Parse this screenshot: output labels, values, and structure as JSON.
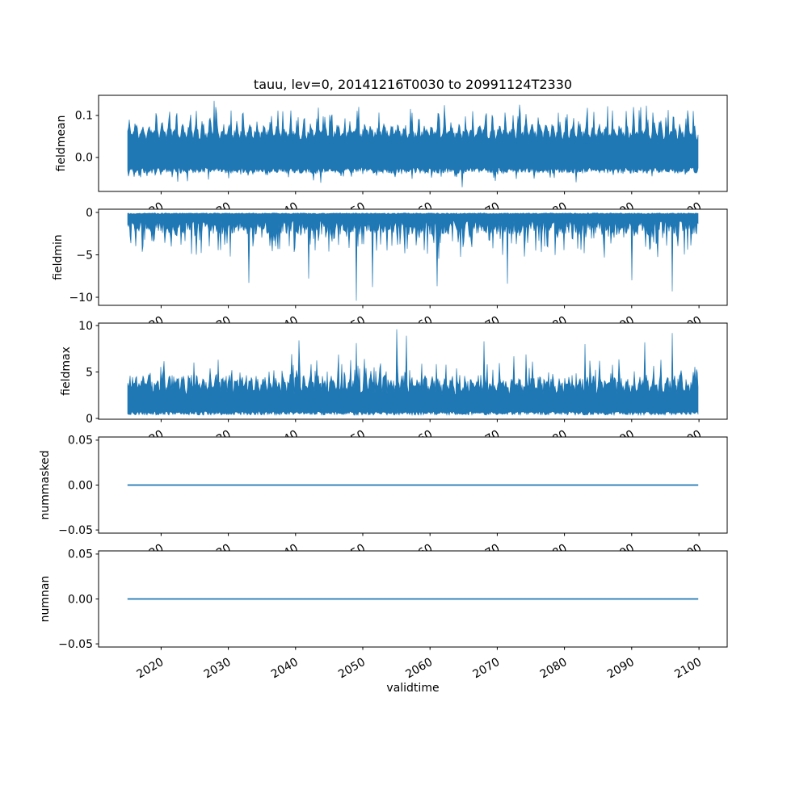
{
  "figure": {
    "background": "#ffffff",
    "line_color": "#1f77b4",
    "frame_color": "#000000"
  },
  "chart_data": {
    "type": "line",
    "title": "tauu, lev=0, 20141216T0030 to 20991124T2330",
    "xlabel": "validtime",
    "legend": "none",
    "grid": false,
    "x_axis": {
      "xlim": [
        2010.7,
        2104.2
      ],
      "ticks": [
        2020,
        2030,
        2040,
        2050,
        2060,
        2070,
        2080,
        2090,
        2100
      ],
      "tick_labels": [
        "2020",
        "2030",
        "2040",
        "2050",
        "2060",
        "2070",
        "2080",
        "2090",
        "2100"
      ],
      "data_start": 2015.0,
      "data_end": 2099.9,
      "tick_label_rotation_deg": 30
    },
    "panels": [
      {
        "name": "fieldmean",
        "ylabel": "fieldmean",
        "ylim": [
          -0.081,
          0.148
        ],
        "yticks": [
          0.0,
          0.1
        ],
        "ytick_labels": [
          "0.0",
          "0.1"
        ],
        "summary": {
          "mean_level": 0.015,
          "typical_range": [
            -0.035,
            0.08
          ],
          "observed_min": -0.071,
          "observed_max": 0.135
        },
        "series": {
          "kind": "noisy-band",
          "gen": {
            "seed": 11,
            "base_top": 0.04,
            "top_jitter": 0.022,
            "season_amp": 0.02,
            "season_gate": true,
            "spike_p": 0.55,
            "spike_amp": 0.05,
            "spike_pow": 1.5,
            "base_bottom": -0.024,
            "bottom_jitter": 0.014,
            "bspike_p": 0.1,
            "bspike_amp": 0.025,
            "bspike_pow": 1
          },
          "extremes_top": [
            {
              "year": 2027.9,
              "value": 0.135
            }
          ],
          "extremes_bottom": [
            {
              "year": 2064.8,
              "value": -0.071
            }
          ]
        }
      },
      {
        "name": "fieldmin",
        "ylabel": "fieldmin",
        "ylim": [
          -10.95,
          0.38
        ],
        "yticks": [
          0,
          -5,
          -10
        ],
        "ytick_labels": [
          "0",
          "−5",
          "−10"
        ],
        "summary": {
          "mean_level": -1.8,
          "typical_range": [
            -4.0,
            -0.1
          ],
          "observed_min": -10.4,
          "observed_max": -0.05
        },
        "series": {
          "kind": "noisy-band",
          "gen": {
            "seed": 22,
            "base_top": -0.18,
            "top_jitter": 0.12,
            "season_amp": 0,
            "base_bottom": -0.9,
            "bottom_jitter": 1.7,
            "bspike_p": 0.42,
            "bspike_amp": 3.2,
            "bspike_pow": 2,
            "bdeep_p": 0.015,
            "bdeep_amp": 3.4
          },
          "extremes_top": [],
          "extremes_bottom": [
            {
              "year": 2033.0,
              "value": -8.3
            },
            {
              "year": 2042.0,
              "value": -7.8
            },
            {
              "year": 2049.0,
              "value": -10.4
            },
            {
              "year": 2051.5,
              "value": -8.8
            },
            {
              "year": 2061.0,
              "value": -8.7
            },
            {
              "year": 2071.5,
              "value": -8.4
            },
            {
              "year": 2090.0,
              "value": -8.0
            },
            {
              "year": 2096.0,
              "value": -9.3
            }
          ]
        }
      },
      {
        "name": "fieldmax",
        "ylabel": "fieldmax",
        "ylim": [
          -0.09,
          10.26
        ],
        "yticks": [
          0,
          5,
          10
        ],
        "ytick_labels": [
          "0",
          "5",
          "10"
        ],
        "summary": {
          "mean_level": 2.5,
          "typical_range": [
            0.4,
            5.0
          ],
          "observed_min": 0.3,
          "observed_max": 9.6
        },
        "series": {
          "kind": "noisy-band",
          "gen": {
            "seed": 33,
            "base_top": 2.5,
            "top_jitter": 1.4,
            "season_amp": 0.9,
            "spike_p": 0.28,
            "spike_amp": 2.6,
            "spike_pow": 2,
            "base_bottom": 0.75,
            "bottom_jitter": 0.4
          },
          "extremes_top": [
            {
              "year": 2040.5,
              "value": 8.4
            },
            {
              "year": 2049.0,
              "value": 8.1
            },
            {
              "year": 2055.0,
              "value": 9.6
            },
            {
              "year": 2056.5,
              "value": 8.9
            },
            {
              "year": 2068.0,
              "value": 8.3
            },
            {
              "year": 2083.0,
              "value": 8.0
            },
            {
              "year": 2092.0,
              "value": 8.2
            },
            {
              "year": 2096.0,
              "value": 9.2
            }
          ],
          "extremes_bottom": []
        }
      },
      {
        "name": "nummasked",
        "ylabel": "nummasked",
        "ylim": [
          -0.0535,
          0.0535
        ],
        "yticks": [
          0.05,
          0.0,
          -0.05
        ],
        "ytick_labels": [
          "0.05",
          "0.00",
          "−0.05"
        ],
        "summary": {
          "constant_value": 0.0
        },
        "series": {
          "kind": "flat",
          "value": 0.0
        }
      },
      {
        "name": "numnan",
        "ylabel": "numnan",
        "ylim": [
          -0.0535,
          0.0535
        ],
        "yticks": [
          0.05,
          0.0,
          -0.05
        ],
        "ytick_labels": [
          "0.05",
          "0.00",
          "−0.05"
        ],
        "summary": {
          "constant_value": 0.0
        },
        "series": {
          "kind": "flat",
          "value": 0.0
        }
      }
    ]
  }
}
